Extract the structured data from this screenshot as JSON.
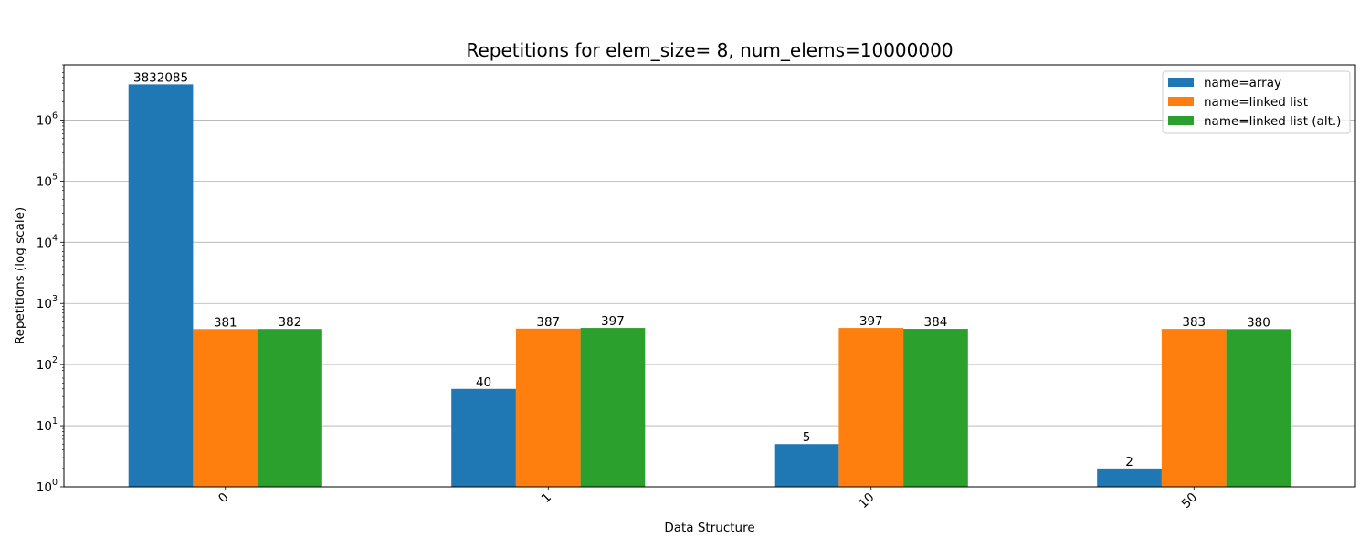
{
  "chart_data": {
    "type": "bar",
    "title": "Repetitions for elem_size= 8, num_elems=10000000",
    "xlabel": "Data Structure",
    "ylabel": "Repetitions (log scale)",
    "yscale": "log",
    "ylim": [
      1,
      8000000
    ],
    "y_ticks": [
      {
        "base": "10",
        "exp": "0",
        "value": 1
      },
      {
        "base": "10",
        "exp": "1",
        "value": 10
      },
      {
        "base": "10",
        "exp": "2",
        "value": 100
      },
      {
        "base": "10",
        "exp": "3",
        "value": 1000
      },
      {
        "base": "10",
        "exp": "4",
        "value": 10000
      },
      {
        "base": "10",
        "exp": "5",
        "value": 100000
      },
      {
        "base": "10",
        "exp": "6",
        "value": 1000000
      }
    ],
    "grid": "horizontal",
    "x_tick_rotation": "45 degrees",
    "categories": [
      "0",
      "1",
      "10",
      "50"
    ],
    "series": [
      {
        "name": "name=array",
        "color": "#1f77b4",
        "values": [
          3832085,
          40,
          5,
          2
        ],
        "labels": [
          "3832085",
          "40",
          "5",
          "2"
        ]
      },
      {
        "name": "name=linked list",
        "color": "#ff7f0e",
        "values": [
          381,
          387,
          397,
          383
        ],
        "labels": [
          "381",
          "387",
          "397",
          "383"
        ]
      },
      {
        "name": "name=linked list (alt.)",
        "color": "#2ca02c",
        "values": [
          382,
          397,
          384,
          380
        ],
        "labels": [
          "382",
          "397",
          "384",
          "380"
        ]
      }
    ],
    "legend_position": "top-right"
  }
}
